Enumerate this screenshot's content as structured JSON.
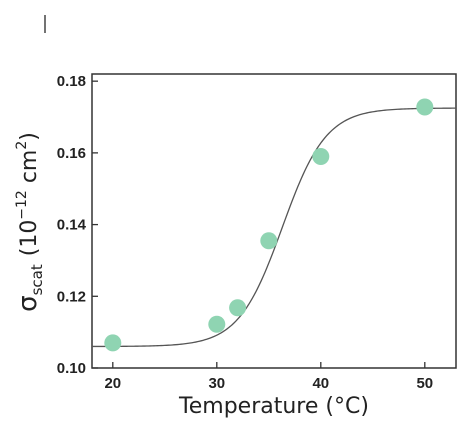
{
  "chart_data": {
    "type": "scatter",
    "xlabel": "Temperature (°C)",
    "ylabel": {
      "symbol": "σ",
      "subscript": "scat",
      "unit_open": "(10",
      "exponent": "−12",
      "unit_rest": " cm",
      "unit_exp": "2",
      "unit_close": ")"
    },
    "xlim": [
      18,
      53
    ],
    "ylim": [
      0.1,
      0.182
    ],
    "xticks": [
      20,
      30,
      40,
      50
    ],
    "yticks": [
      0.1,
      0.12,
      0.14,
      0.16,
      0.18
    ],
    "ytick_labels": [
      "0.10",
      "0.12",
      "0.14",
      "0.16",
      "0.18"
    ],
    "grid": false,
    "series": [
      {
        "kind": "points",
        "color": "#8fd4b2",
        "x": [
          20,
          30,
          32,
          35,
          40,
          50
        ],
        "y": [
          0.107,
          0.1122,
          0.1168,
          0.1355,
          0.159,
          0.1728
        ]
      },
      {
        "kind": "fit-curve",
        "color": "#555555",
        "model": "sigmoid",
        "baseline": 0.106,
        "plateau": 0.1725,
        "midpoint": 36.3,
        "width": 2.1,
        "x_range": [
          18,
          53
        ]
      }
    ]
  }
}
